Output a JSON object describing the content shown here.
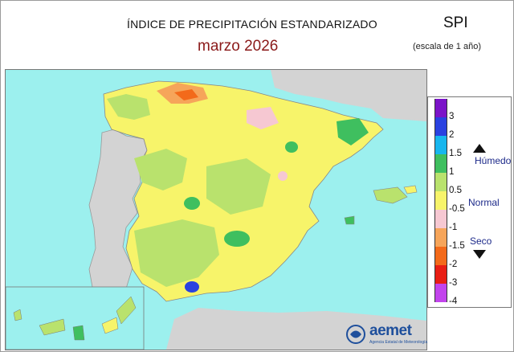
{
  "header": {
    "title": "ÍNDICE DE PRECIPITACIÓN ESTANDARIZADO",
    "period": "marzo  2026",
    "index": "SPI",
    "scale_note": "(escala de 1 año)"
  },
  "legend": {
    "ticks": [
      "3",
      "2",
      "1.5",
      "1",
      "0.5",
      "-0.5",
      "-1",
      "-1.5",
      "-2",
      "-3",
      "-4"
    ],
    "categories": {
      "wet": "Húmedo",
      "normal": "Normal",
      "dry": "Seco"
    },
    "colors": [
      "#7b14c8",
      "#2a42e0",
      "#18b6ee",
      "#3fbf5f",
      "#b9e26d",
      "#f7f46a",
      "#f6c8d2",
      "#f6a55a",
      "#f36a1a",
      "#e81e14",
      "#c244ec"
    ]
  },
  "map": {
    "colors": {
      "sea": "#9cf0ee",
      "foreign_land": "#d3d3d3",
      "province_border": "#bdbdbd"
    }
  },
  "logo": {
    "name": "aemet",
    "subtitle": "Agencia Estatal de Meteorología"
  }
}
